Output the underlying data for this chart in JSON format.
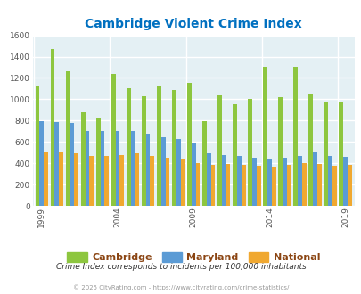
{
  "title": "Cambridge Violent Crime Index",
  "subtitle": "Crime Index corresponds to incidents per 100,000 inhabitants",
  "footer": "© 2025 CityRating.com - https://www.cityrating.com/crime-statistics/",
  "years": [
    1999,
    2000,
    2001,
    2002,
    2003,
    2004,
    2005,
    2006,
    2007,
    2008,
    2009,
    2010,
    2011,
    2012,
    2013,
    2014,
    2015,
    2016,
    2017,
    2018,
    2019
  ],
  "cambridge": [
    1130,
    1470,
    1260,
    875,
    825,
    1235,
    1105,
    1025,
    1130,
    1085,
    1155,
    790,
    1035,
    955,
    1000,
    1300,
    1020,
    1300,
    1045,
    975,
    975
  ],
  "maryland": [
    790,
    785,
    775,
    700,
    705,
    705,
    700,
    675,
    640,
    625,
    590,
    495,
    475,
    470,
    455,
    445,
    455,
    470,
    505,
    465,
    460
  ],
  "national": [
    500,
    505,
    495,
    465,
    470,
    475,
    490,
    470,
    450,
    440,
    405,
    385,
    395,
    385,
    375,
    370,
    385,
    400,
    395,
    380,
    385
  ],
  "xtick_labels": [
    "1999",
    "2004",
    "2009",
    "2014",
    "2019"
  ],
  "xtick_positions": [
    0,
    5,
    10,
    15,
    20
  ],
  "ylim": [
    0,
    1600
  ],
  "yticks": [
    0,
    200,
    400,
    600,
    800,
    1000,
    1200,
    1400,
    1600
  ],
  "color_cambridge": "#8DC63F",
  "color_maryland": "#5B9BD5",
  "color_national": "#F0A830",
  "plot_bg": "#E4F0F4",
  "title_color": "#0070C0",
  "grid_color": "#FFFFFF",
  "bar_width": 0.28,
  "legend_label_color": "#8B4513"
}
